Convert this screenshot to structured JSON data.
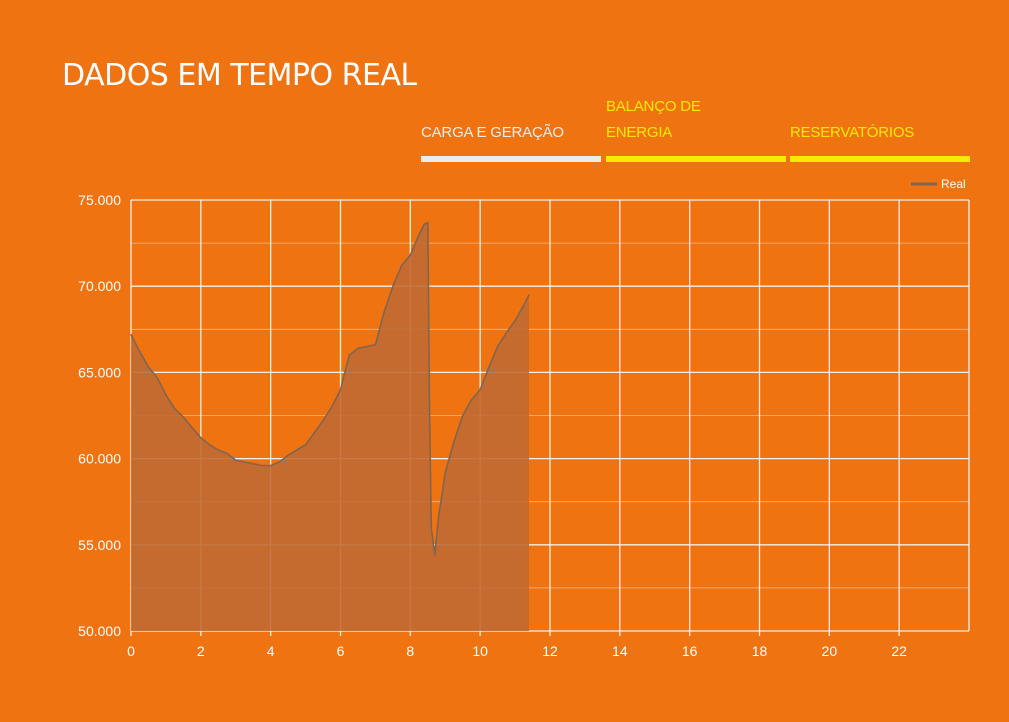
{
  "page": {
    "title": "DADOS EM TEMPO REAL"
  },
  "tabs": [
    {
      "label": "CARGA E GERAÇÃO",
      "active": true
    },
    {
      "label": "BALANÇO DE ENERGIA",
      "active": false
    },
    {
      "label": "RESERVATÓRIOS",
      "active": false
    }
  ],
  "colors": {
    "background": "#f07312",
    "active_tab": "#ebebeb",
    "inactive_tab": "#f9ea00",
    "series_line": "#7f6650",
    "series_fill": "#c06a34",
    "grid": "#f8efe6"
  },
  "chart_data": {
    "type": "area",
    "title": "",
    "xlabel": "",
    "ylabel": "",
    "xlim": [
      0,
      24
    ],
    "ylim": [
      50000,
      75000
    ],
    "x_ticks": [
      0,
      2,
      4,
      6,
      8,
      10,
      12,
      14,
      16,
      18,
      20,
      22
    ],
    "x_tick_labels": [
      "0",
      "2",
      "4",
      "6",
      "8",
      "10",
      "12",
      "14",
      "16",
      "18",
      "20",
      "22"
    ],
    "y_ticks": [
      50000,
      55000,
      60000,
      65000,
      70000,
      75000
    ],
    "y_tick_labels": [
      "50.000",
      "55.000",
      "60.000",
      "65.000",
      "70.000",
      "75.000"
    ],
    "grid": true,
    "legend_position": "top-right",
    "series": [
      {
        "name": "Real",
        "x": [
          0,
          0.25,
          0.5,
          0.75,
          1.0,
          1.25,
          1.5,
          1.75,
          2.0,
          2.25,
          2.5,
          2.75,
          3.0,
          3.25,
          3.5,
          3.75,
          4.0,
          4.25,
          4.5,
          4.75,
          5.0,
          5.25,
          5.5,
          5.75,
          6.0,
          6.25,
          6.5,
          6.75,
          7.0,
          7.25,
          7.5,
          7.75,
          8.0,
          8.25,
          8.4,
          8.5,
          8.55,
          8.6,
          8.7,
          8.8,
          9.0,
          9.25,
          9.5,
          9.75,
          10.0,
          10.25,
          10.5,
          10.75,
          11.0,
          11.25,
          11.4
        ],
        "values": [
          67200,
          66200,
          65300,
          64700,
          63700,
          62900,
          62400,
          61800,
          61200,
          60800,
          60500,
          60300,
          59900,
          59800,
          59700,
          59600,
          59600,
          59800,
          60200,
          60500,
          60800,
          61500,
          62200,
          63000,
          64000,
          66000,
          66400,
          66500,
          66600,
          68500,
          70000,
          71200,
          71800,
          73000,
          73600,
          73700,
          63000,
          56000,
          54400,
          56500,
          59200,
          61000,
          62500,
          63400,
          64000,
          65300,
          66500,
          67300,
          68000,
          68900,
          69500
        ]
      }
    ]
  }
}
